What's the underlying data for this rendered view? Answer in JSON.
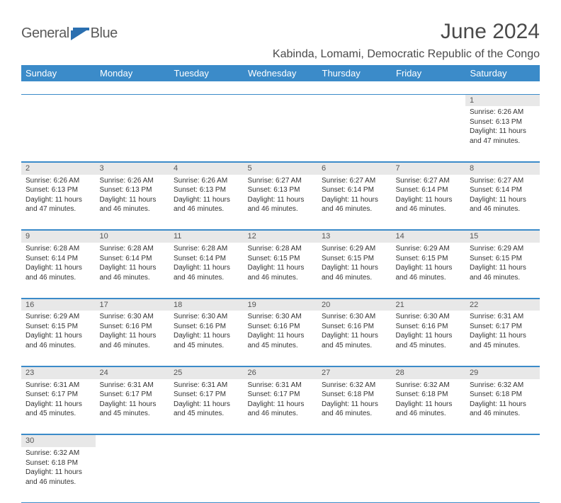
{
  "brand": {
    "general": "General",
    "blue": "Blue"
  },
  "title": "June 2024",
  "subtitle": "Kabinda, Lomami, Democratic Republic of the Congo",
  "colors": {
    "header_bg": "#3b8bc9",
    "header_fg": "#ffffff",
    "daynum_bg": "#e8e8e8",
    "text": "#333333",
    "title_color": "#4a4a4a",
    "rule": "#3b8bc9"
  },
  "day_labels": [
    "Sunday",
    "Monday",
    "Tuesday",
    "Wednesday",
    "Thursday",
    "Friday",
    "Saturday"
  ],
  "weeks": [
    {
      "nums": [
        "",
        "",
        "",
        "",
        "",
        "",
        "1"
      ],
      "cells": [
        null,
        null,
        null,
        null,
        null,
        null,
        {
          "sunrise": "Sunrise: 6:26 AM",
          "sunset": "Sunset: 6:13 PM",
          "daylight": "Daylight: 11 hours and 47 minutes."
        }
      ]
    },
    {
      "nums": [
        "2",
        "3",
        "4",
        "5",
        "6",
        "7",
        "8"
      ],
      "cells": [
        {
          "sunrise": "Sunrise: 6:26 AM",
          "sunset": "Sunset: 6:13 PM",
          "daylight": "Daylight: 11 hours and 47 minutes."
        },
        {
          "sunrise": "Sunrise: 6:26 AM",
          "sunset": "Sunset: 6:13 PM",
          "daylight": "Daylight: 11 hours and 46 minutes."
        },
        {
          "sunrise": "Sunrise: 6:26 AM",
          "sunset": "Sunset: 6:13 PM",
          "daylight": "Daylight: 11 hours and 46 minutes."
        },
        {
          "sunrise": "Sunrise: 6:27 AM",
          "sunset": "Sunset: 6:13 PM",
          "daylight": "Daylight: 11 hours and 46 minutes."
        },
        {
          "sunrise": "Sunrise: 6:27 AM",
          "sunset": "Sunset: 6:14 PM",
          "daylight": "Daylight: 11 hours and 46 minutes."
        },
        {
          "sunrise": "Sunrise: 6:27 AM",
          "sunset": "Sunset: 6:14 PM",
          "daylight": "Daylight: 11 hours and 46 minutes."
        },
        {
          "sunrise": "Sunrise: 6:27 AM",
          "sunset": "Sunset: 6:14 PM",
          "daylight": "Daylight: 11 hours and 46 minutes."
        }
      ]
    },
    {
      "nums": [
        "9",
        "10",
        "11",
        "12",
        "13",
        "14",
        "15"
      ],
      "cells": [
        {
          "sunrise": "Sunrise: 6:28 AM",
          "sunset": "Sunset: 6:14 PM",
          "daylight": "Daylight: 11 hours and 46 minutes."
        },
        {
          "sunrise": "Sunrise: 6:28 AM",
          "sunset": "Sunset: 6:14 PM",
          "daylight": "Daylight: 11 hours and 46 minutes."
        },
        {
          "sunrise": "Sunrise: 6:28 AM",
          "sunset": "Sunset: 6:14 PM",
          "daylight": "Daylight: 11 hours and 46 minutes."
        },
        {
          "sunrise": "Sunrise: 6:28 AM",
          "sunset": "Sunset: 6:15 PM",
          "daylight": "Daylight: 11 hours and 46 minutes."
        },
        {
          "sunrise": "Sunrise: 6:29 AM",
          "sunset": "Sunset: 6:15 PM",
          "daylight": "Daylight: 11 hours and 46 minutes."
        },
        {
          "sunrise": "Sunrise: 6:29 AM",
          "sunset": "Sunset: 6:15 PM",
          "daylight": "Daylight: 11 hours and 46 minutes."
        },
        {
          "sunrise": "Sunrise: 6:29 AM",
          "sunset": "Sunset: 6:15 PM",
          "daylight": "Daylight: 11 hours and 46 minutes."
        }
      ]
    },
    {
      "nums": [
        "16",
        "17",
        "18",
        "19",
        "20",
        "21",
        "22"
      ],
      "cells": [
        {
          "sunrise": "Sunrise: 6:29 AM",
          "sunset": "Sunset: 6:15 PM",
          "daylight": "Daylight: 11 hours and 46 minutes."
        },
        {
          "sunrise": "Sunrise: 6:30 AM",
          "sunset": "Sunset: 6:16 PM",
          "daylight": "Daylight: 11 hours and 46 minutes."
        },
        {
          "sunrise": "Sunrise: 6:30 AM",
          "sunset": "Sunset: 6:16 PM",
          "daylight": "Daylight: 11 hours and 45 minutes."
        },
        {
          "sunrise": "Sunrise: 6:30 AM",
          "sunset": "Sunset: 6:16 PM",
          "daylight": "Daylight: 11 hours and 45 minutes."
        },
        {
          "sunrise": "Sunrise: 6:30 AM",
          "sunset": "Sunset: 6:16 PM",
          "daylight": "Daylight: 11 hours and 45 minutes."
        },
        {
          "sunrise": "Sunrise: 6:30 AM",
          "sunset": "Sunset: 6:16 PM",
          "daylight": "Daylight: 11 hours and 45 minutes."
        },
        {
          "sunrise": "Sunrise: 6:31 AM",
          "sunset": "Sunset: 6:17 PM",
          "daylight": "Daylight: 11 hours and 45 minutes."
        }
      ]
    },
    {
      "nums": [
        "23",
        "24",
        "25",
        "26",
        "27",
        "28",
        "29"
      ],
      "cells": [
        {
          "sunrise": "Sunrise: 6:31 AM",
          "sunset": "Sunset: 6:17 PM",
          "daylight": "Daylight: 11 hours and 45 minutes."
        },
        {
          "sunrise": "Sunrise: 6:31 AM",
          "sunset": "Sunset: 6:17 PM",
          "daylight": "Daylight: 11 hours and 45 minutes."
        },
        {
          "sunrise": "Sunrise: 6:31 AM",
          "sunset": "Sunset: 6:17 PM",
          "daylight": "Daylight: 11 hours and 45 minutes."
        },
        {
          "sunrise": "Sunrise: 6:31 AM",
          "sunset": "Sunset: 6:17 PM",
          "daylight": "Daylight: 11 hours and 46 minutes."
        },
        {
          "sunrise": "Sunrise: 6:32 AM",
          "sunset": "Sunset: 6:18 PM",
          "daylight": "Daylight: 11 hours and 46 minutes."
        },
        {
          "sunrise": "Sunrise: 6:32 AM",
          "sunset": "Sunset: 6:18 PM",
          "daylight": "Daylight: 11 hours and 46 minutes."
        },
        {
          "sunrise": "Sunrise: 6:32 AM",
          "sunset": "Sunset: 6:18 PM",
          "daylight": "Daylight: 11 hours and 46 minutes."
        }
      ]
    },
    {
      "nums": [
        "30",
        "",
        "",
        "",
        "",
        "",
        ""
      ],
      "cells": [
        {
          "sunrise": "Sunrise: 6:32 AM",
          "sunset": "Sunset: 6:18 PM",
          "daylight": "Daylight: 11 hours and 46 minutes."
        },
        null,
        null,
        null,
        null,
        null,
        null
      ]
    }
  ]
}
